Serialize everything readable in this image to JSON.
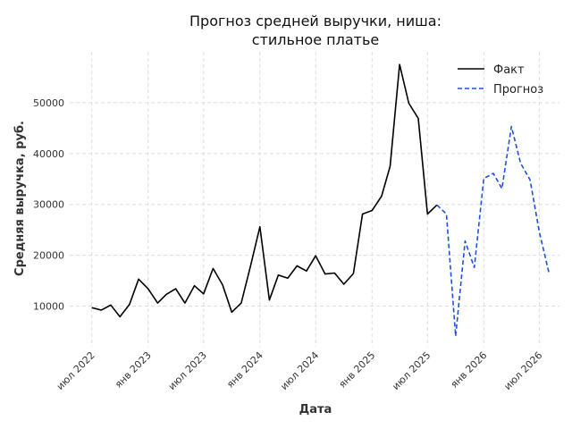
{
  "chart_data": {
    "type": "line",
    "title": "Прогноз средней выручки, ниша:\nстильное платье",
    "xlabel": "Дата",
    "ylabel": "Средняя выручка, руб.",
    "xlim": [
      "2022-04-20",
      "2026-09-05"
    ],
    "ylim": [
      2000,
      60000
    ],
    "y_ticks": [
      10000,
      20000,
      30000,
      40000,
      50000
    ],
    "x_ticks": [
      {
        "date": "2022-07-01",
        "label": "июл 2022"
      },
      {
        "date": "2023-01-01",
        "label": "янв 2023"
      },
      {
        "date": "2023-07-01",
        "label": "июл 2023"
      },
      {
        "date": "2024-01-01",
        "label": "янв 2024"
      },
      {
        "date": "2024-07-01",
        "label": "июл 2024"
      },
      {
        "date": "2025-01-01",
        "label": "янв 2025"
      },
      {
        "date": "2025-07-01",
        "label": "июл 2025"
      },
      {
        "date": "2026-01-01",
        "label": "янв 2026"
      },
      {
        "date": "2026-07-01",
        "label": "июл 2026"
      }
    ],
    "grid": true,
    "legend_position": "top-right",
    "series": [
      {
        "name": "Факт",
        "color": "#000000",
        "style": "solid",
        "points": [
          [
            "2022-07-01",
            9700
          ],
          [
            "2022-08-01",
            9200
          ],
          [
            "2022-09-01",
            10200
          ],
          [
            "2022-10-01",
            7900
          ],
          [
            "2022-11-01",
            10300
          ],
          [
            "2022-12-01",
            15300
          ],
          [
            "2023-01-01",
            13400
          ],
          [
            "2023-02-01",
            10600
          ],
          [
            "2023-03-01",
            12300
          ],
          [
            "2023-04-01",
            13400
          ],
          [
            "2023-05-01",
            10600
          ],
          [
            "2023-06-01",
            14000
          ],
          [
            "2023-07-01",
            12400
          ],
          [
            "2023-08-01",
            17400
          ],
          [
            "2023-09-01",
            14200
          ],
          [
            "2023-10-01",
            8800
          ],
          [
            "2023-11-01",
            10600
          ],
          [
            "2023-12-01",
            17800
          ],
          [
            "2024-01-01",
            25600
          ],
          [
            "2024-02-01",
            11200
          ],
          [
            "2024-03-01",
            16100
          ],
          [
            "2024-04-01",
            15500
          ],
          [
            "2024-05-01",
            17900
          ],
          [
            "2024-06-01",
            16900
          ],
          [
            "2024-07-01",
            19900
          ],
          [
            "2024-08-01",
            16300
          ],
          [
            "2024-09-01",
            16500
          ],
          [
            "2024-10-01",
            14300
          ],
          [
            "2024-11-01",
            16400
          ],
          [
            "2024-12-01",
            28100
          ],
          [
            "2025-01-01",
            28800
          ],
          [
            "2025-02-01",
            31600
          ],
          [
            "2025-03-01",
            37500
          ],
          [
            "2025-04-01",
            57500
          ],
          [
            "2025-05-01",
            49900
          ],
          [
            "2025-06-01",
            46900
          ],
          [
            "2025-07-01",
            28100
          ],
          [
            "2025-08-01",
            29900
          ]
        ]
      },
      {
        "name": "Прогноз",
        "color": "#1f4fe0",
        "style": "dashed",
        "points": [
          [
            "2025-08-01",
            29900
          ],
          [
            "2025-09-01",
            28100
          ],
          [
            "2025-10-01",
            4100
          ],
          [
            "2025-11-01",
            22800
          ],
          [
            "2025-12-01",
            17600
          ],
          [
            "2026-01-01",
            35100
          ],
          [
            "2026-02-01",
            36100
          ],
          [
            "2026-03-01",
            33100
          ],
          [
            "2026-04-01",
            45300
          ],
          [
            "2026-05-01",
            38100
          ],
          [
            "2026-06-01",
            34800
          ],
          [
            "2026-07-01",
            24600
          ],
          [
            "2026-08-01",
            16700
          ]
        ]
      }
    ]
  }
}
